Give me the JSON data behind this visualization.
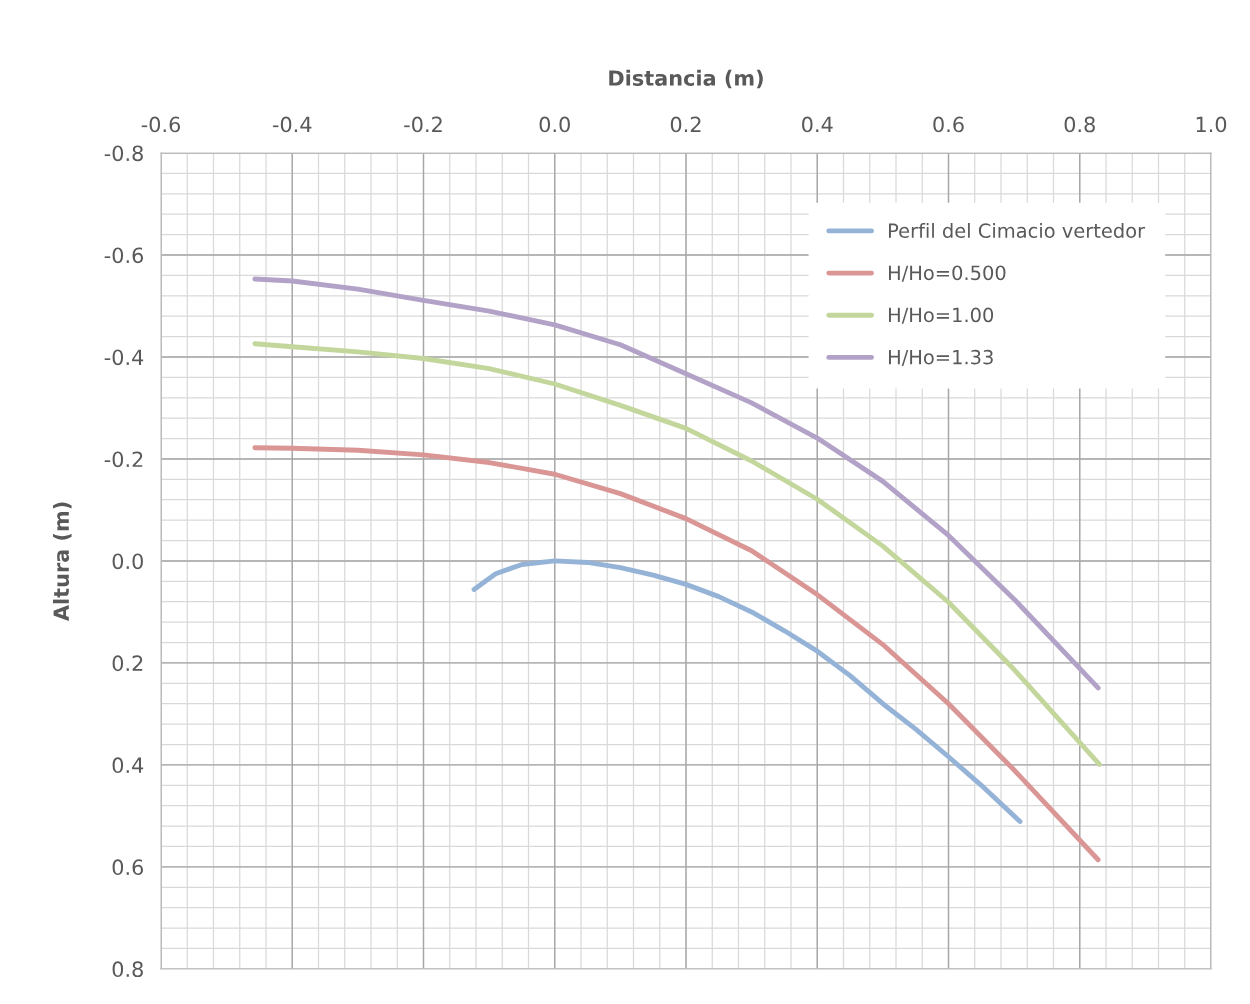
{
  "chart_data": {
    "type": "line",
    "xlabel": "Distancia (m)",
    "ylabel": "Altura (m)",
    "xlim": [
      -0.6,
      1.0
    ],
    "xticks": [
      -0.6,
      -0.4,
      -0.2,
      {
        "value": 0.0,
        "label": "0.0"
      },
      0.2,
      0.4,
      0.6,
      0.8,
      {
        "value": 1.0,
        "label": "1.0"
      }
    ],
    "ylim": [
      0.8,
      -0.8
    ],
    "yticks": [
      -0.8,
      -0.6,
      -0.4,
      -0.2,
      {
        "value": 0.0,
        "label": "0.0"
      },
      0.2,
      0.4,
      0.6,
      0.8
    ],
    "grid": true,
    "legend": "top right",
    "marker": "none",
    "line_style": "solid",
    "series": [
      {
        "name": "Perfil del Cimacio vertedor",
        "color": "#95b3d7",
        "x": [
          -0.123,
          -0.09,
          -0.05,
          0,
          0.05,
          0.1,
          0.15,
          0.2,
          0.25,
          0.3,
          0.35,
          0.4,
          0.45,
          0.5,
          0.55,
          0.6,
          0.65,
          0.709
        ],
        "values": [
          0.056,
          0.025,
          0.007,
          0.0,
          0.003,
          0.013,
          0.028,
          0.046,
          0.07,
          0.1,
          0.137,
          0.177,
          0.225,
          0.28,
          0.33,
          0.384,
          0.44,
          0.511
        ]
      },
      {
        "name": "H/Ho=0.500",
        "color": "#d99694",
        "x": [
          -0.457,
          -0.4,
          -0.3,
          -0.2,
          -0.1,
          0,
          0.1,
          0.2,
          0.3,
          0.4,
          0.5,
          0.6,
          0.7,
          0.828
        ],
        "values": [
          -0.222,
          -0.221,
          -0.217,
          -0.208,
          -0.193,
          -0.17,
          -0.132,
          -0.083,
          -0.02,
          0.066,
          0.164,
          0.28,
          0.41,
          0.586
        ]
      },
      {
        "name": "H/Ho=1.00",
        "color": "#c3d69b",
        "x": [
          -0.457,
          -0.4,
          -0.3,
          -0.2,
          -0.1,
          0,
          0.1,
          0.2,
          0.3,
          0.4,
          0.5,
          0.6,
          0.7,
          0.83
        ],
        "values": [
          -0.426,
          -0.42,
          -0.41,
          -0.397,
          -0.377,
          -0.347,
          -0.305,
          -0.26,
          -0.196,
          -0.121,
          -0.029,
          0.081,
          0.213,
          0.399
        ]
      },
      {
        "name": "H/Ho=1.33",
        "color": "#b3a2c7",
        "x": [
          -0.457,
          -0.4,
          -0.3,
          -0.2,
          -0.1,
          0,
          0.1,
          0.2,
          0.3,
          0.4,
          0.5,
          0.6,
          0.7,
          0.828
        ],
        "values": [
          -0.553,
          -0.549,
          -0.533,
          -0.511,
          -0.49,
          -0.463,
          -0.424,
          -0.367,
          -0.31,
          -0.241,
          -0.156,
          -0.05,
          0.075,
          0.249
        ]
      }
    ]
  }
}
